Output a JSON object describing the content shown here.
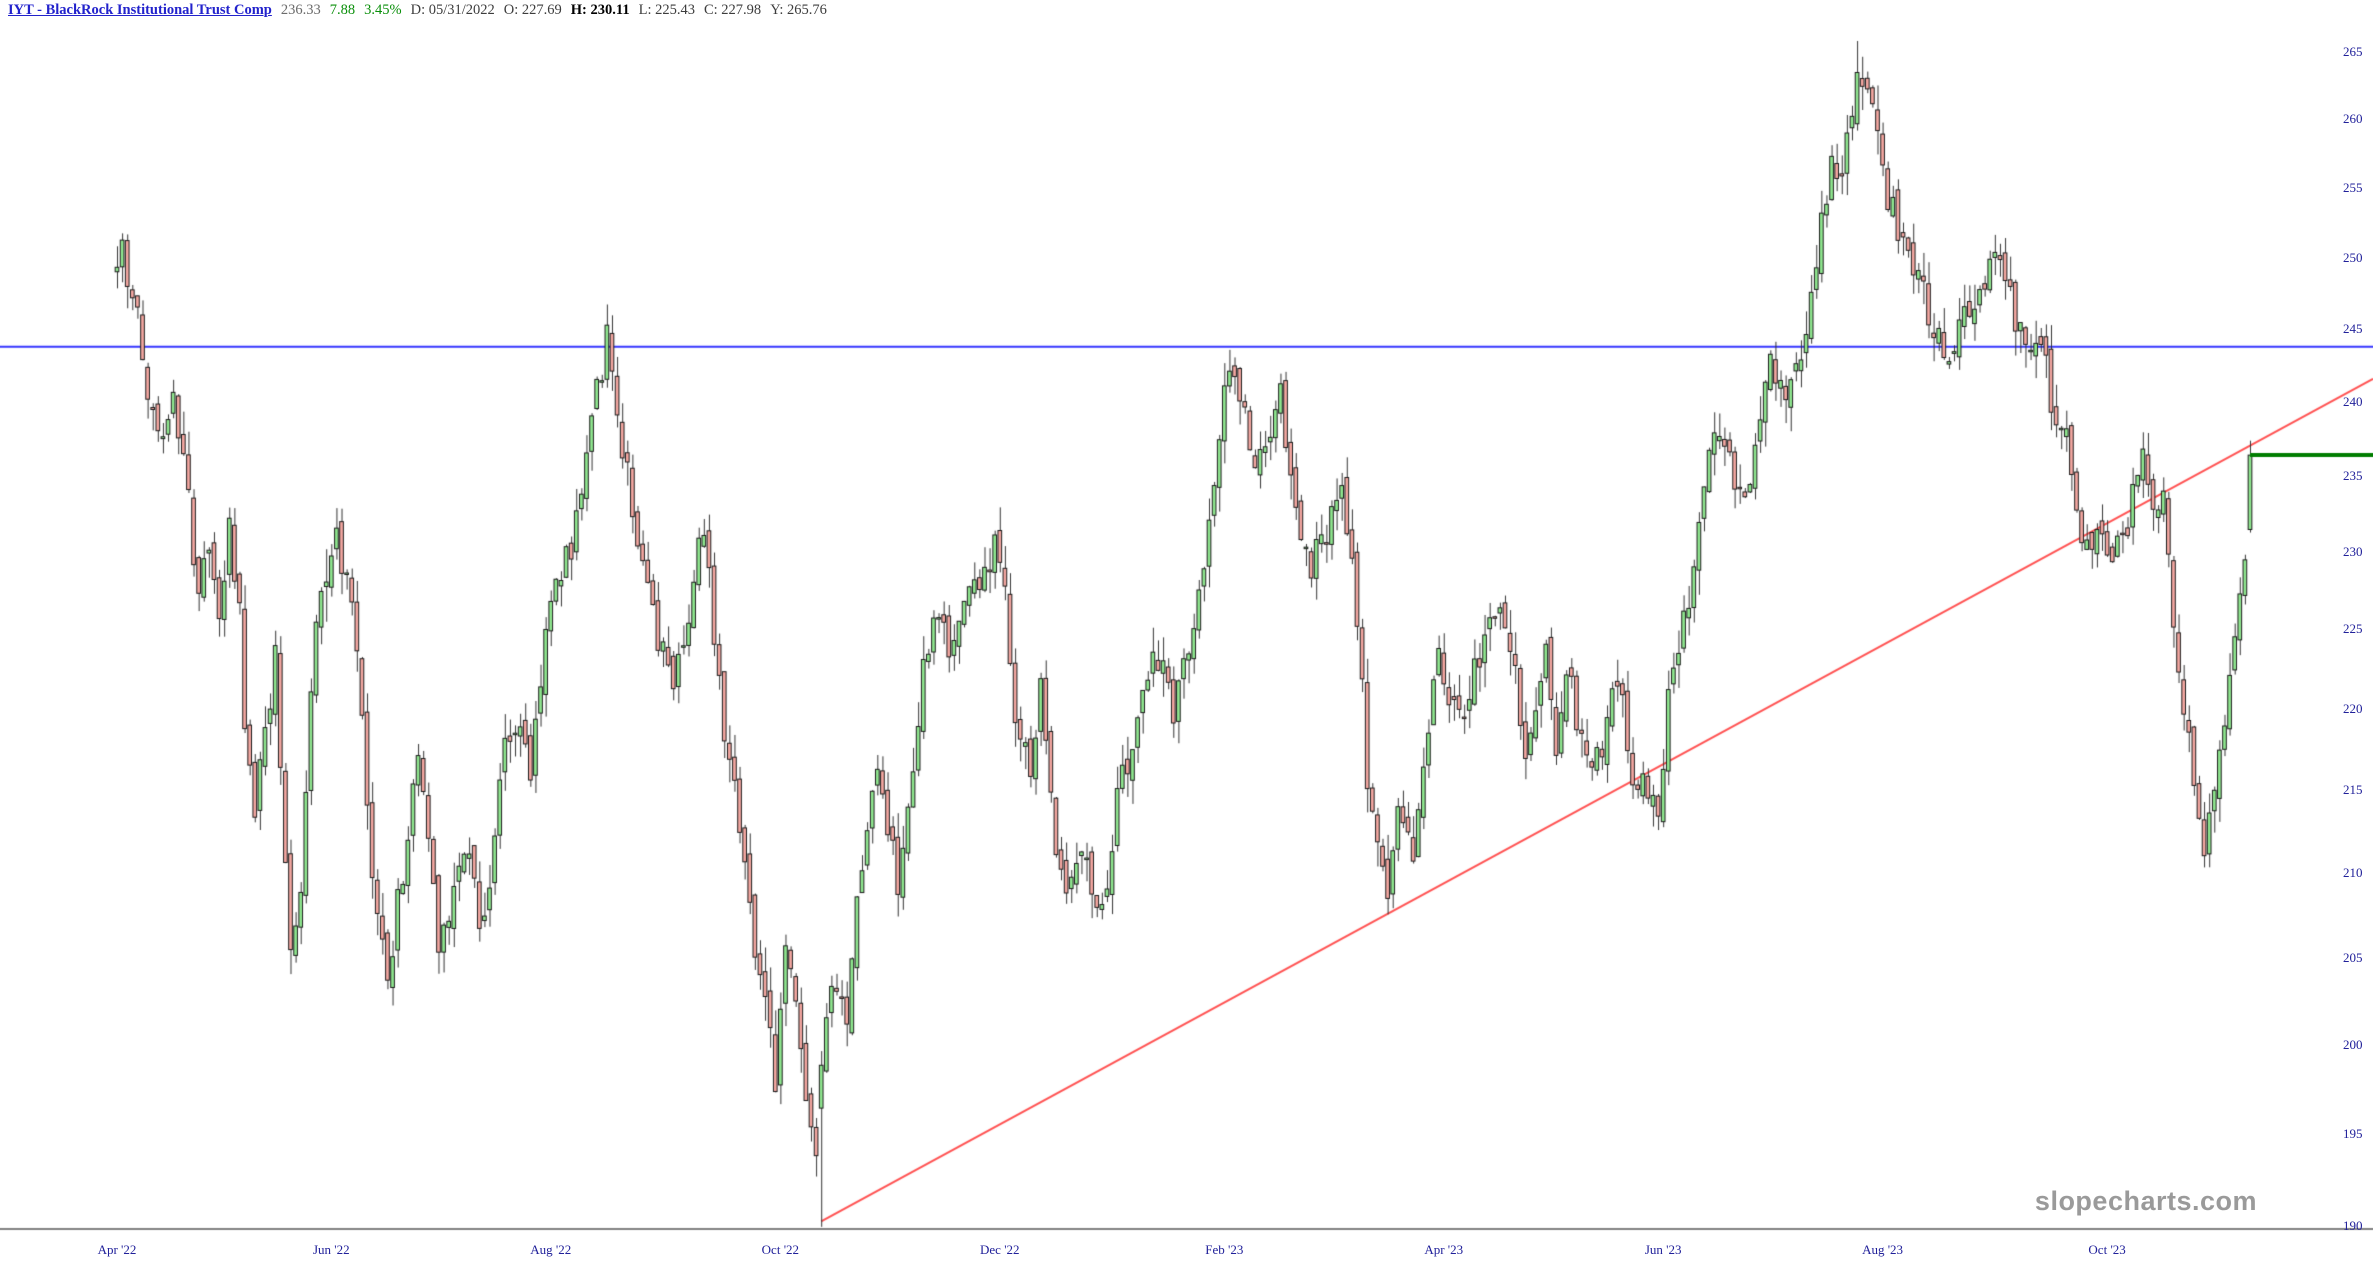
{
  "header": {
    "title": "IYT - BlackRock Institutional Trust Comp",
    "last_price": "236.33",
    "change": "7.88",
    "change_pct": "3.45%",
    "fields": [
      {
        "label": "D:",
        "value": "05/31/2022",
        "bold": false
      },
      {
        "label": "O:",
        "value": "227.69",
        "bold": false
      },
      {
        "label": "H:",
        "value": "230.11",
        "bold": true
      },
      {
        "label": "L:",
        "value": "225.43",
        "bold": false
      },
      {
        "label": "C:",
        "value": "227.98",
        "bold": false
      },
      {
        "label": "Y:",
        "value": "265.76",
        "bold": false
      }
    ]
  },
  "watermark": "slopecharts.com",
  "colors": {
    "candle_up_fill": "#90e890",
    "candle_down_fill": "#f5a8a2",
    "candle_border": "#1a1a1a",
    "wick": "#333333",
    "support_line_blue": "#3535ff",
    "trend_line_red": "#ff5252",
    "last_price_line_green": "#007d00",
    "axis_line_gray": "#808080",
    "axis_label_navy": "#20209a",
    "change_green": "#0a8f0a",
    "title_blue": "#2222cc",
    "watermark_gray": "#9a9a9a"
  },
  "chart_data": {
    "type": "candlestick",
    "symbol": "IYT",
    "scale": "log",
    "grid": "off",
    "y_axis": {
      "side": "right",
      "ticks": [
        265,
        260,
        255,
        250,
        245,
        240,
        235,
        230,
        225,
        220,
        215,
        210,
        205,
        200,
        195,
        190
      ]
    },
    "x_axis": {
      "labels": [
        "Apr '22",
        "Jun '22",
        "Aug '22",
        "Oct '22",
        "Dec '22",
        "Feb '23",
        "Apr '23",
        "Jun '23",
        "Aug '23",
        "Oct '23"
      ]
    },
    "date_range": {
      "start": "2022-04-04",
      "end": "2023-11-09"
    },
    "price_path_anchors": [
      [
        "2022-04-04",
        249
      ],
      [
        "2022-04-05",
        252
      ],
      [
        "2022-04-06",
        247
      ],
      [
        "2022-04-08",
        246
      ],
      [
        "2022-04-11",
        242
      ],
      [
        "2022-04-14",
        238
      ],
      [
        "2022-04-19",
        240
      ],
      [
        "2022-04-21",
        236
      ],
      [
        "2022-04-26",
        227
      ],
      [
        "2022-04-28",
        230
      ],
      [
        "2022-05-02",
        226
      ],
      [
        "2022-05-04",
        231
      ],
      [
        "2022-05-06",
        226
      ],
      [
        "2022-05-09",
        218
      ],
      [
        "2022-05-11",
        214
      ],
      [
        "2022-05-13",
        219
      ],
      [
        "2022-05-17",
        223
      ],
      [
        "2022-05-19",
        211
      ],
      [
        "2022-05-20",
        206
      ],
      [
        "2022-05-24",
        209
      ],
      [
        "2022-05-26",
        221
      ],
      [
        "2022-05-27",
        226
      ],
      [
        "2022-05-31",
        227.98
      ],
      [
        "2022-06-02",
        231
      ],
      [
        "2022-06-07",
        226
      ],
      [
        "2022-06-09",
        219
      ],
      [
        "2022-06-13",
        209
      ],
      [
        "2022-06-16",
        204
      ],
      [
        "2022-06-21",
        210
      ],
      [
        "2022-06-24",
        217
      ],
      [
        "2022-06-27",
        215
      ],
      [
        "2022-06-30",
        206
      ],
      [
        "2022-07-05",
        209
      ],
      [
        "2022-07-08",
        212
      ],
      [
        "2022-07-12",
        207
      ],
      [
        "2022-07-14",
        209
      ],
      [
        "2022-07-19",
        218
      ],
      [
        "2022-07-22",
        219
      ],
      [
        "2022-07-26",
        216
      ],
      [
        "2022-07-29",
        225
      ],
      [
        "2022-08-03",
        229
      ],
      [
        "2022-08-05",
        230
      ],
      [
        "2022-08-10",
        237
      ],
      [
        "2022-08-12",
        241
      ],
      [
        "2022-08-16",
        244
      ],
      [
        "2022-08-19",
        237
      ],
      [
        "2022-08-23",
        233
      ],
      [
        "2022-08-26",
        227
      ],
      [
        "2022-08-30",
        224
      ],
      [
        "2022-09-02",
        222
      ],
      [
        "2022-09-07",
        226
      ],
      [
        "2022-09-09",
        230
      ],
      [
        "2022-09-12",
        231
      ],
      [
        "2022-09-14",
        225
      ],
      [
        "2022-09-16",
        219
      ],
      [
        "2022-09-20",
        216
      ],
      [
        "2022-09-23",
        208
      ],
      [
        "2022-09-27",
        204
      ],
      [
        "2022-09-30",
        198
      ],
      [
        "2022-10-04",
        206
      ],
      [
        "2022-10-06",
        202
      ],
      [
        "2022-10-10",
        197
      ],
      [
        "2022-10-12",
        193
      ],
      [
        "2022-10-13",
        198
      ],
      [
        "2022-10-17",
        203
      ],
      [
        "2022-10-20",
        201
      ],
      [
        "2022-10-25",
        211
      ],
      [
        "2022-10-28",
        216
      ],
      [
        "2022-11-01",
        213
      ],
      [
        "2022-11-03",
        209
      ],
      [
        "2022-11-08",
        215
      ],
      [
        "2022-11-10",
        222
      ],
      [
        "2022-11-15",
        226
      ],
      [
        "2022-11-17",
        223
      ],
      [
        "2022-11-22",
        227
      ],
      [
        "2022-11-25",
        228
      ],
      [
        "2022-11-30",
        230
      ],
      [
        "2022-12-02",
        228
      ],
      [
        "2022-12-06",
        219
      ],
      [
        "2022-12-09",
        216
      ],
      [
        "2022-12-13",
        221
      ],
      [
        "2022-12-16",
        212
      ],
      [
        "2022-12-20",
        209
      ],
      [
        "2022-12-23",
        212
      ],
      [
        "2022-12-28",
        208
      ],
      [
        "2022-12-30",
        210
      ],
      [
        "2023-01-04",
        216
      ],
      [
        "2023-01-09",
        219
      ],
      [
        "2023-01-12",
        224
      ],
      [
        "2023-01-18",
        220
      ],
      [
        "2023-01-23",
        224
      ],
      [
        "2023-01-26",
        229
      ],
      [
        "2023-01-31",
        237
      ],
      [
        "2023-02-02",
        243
      ],
      [
        "2023-02-07",
        239
      ],
      [
        "2023-02-09",
        235
      ],
      [
        "2023-02-14",
        238
      ],
      [
        "2023-02-16",
        240
      ],
      [
        "2023-02-21",
        232
      ],
      [
        "2023-02-24",
        229
      ],
      [
        "2023-03-01",
        231
      ],
      [
        "2023-03-03",
        233
      ],
      [
        "2023-03-06",
        234
      ],
      [
        "2023-03-09",
        226
      ],
      [
        "2023-03-13",
        216
      ],
      [
        "2023-03-15",
        211
      ],
      [
        "2023-03-17",
        209
      ],
      [
        "2023-03-21",
        214
      ],
      [
        "2023-03-24",
        211
      ],
      [
        "2023-03-29",
        219
      ],
      [
        "2023-03-31",
        223
      ],
      [
        "2023-04-04",
        221
      ],
      [
        "2023-04-06",
        219
      ],
      [
        "2023-04-11",
        222
      ],
      [
        "2023-04-14",
        225
      ],
      [
        "2023-04-18",
        227
      ],
      [
        "2023-04-21",
        223
      ],
      [
        "2023-04-25",
        216
      ],
      [
        "2023-04-27",
        220
      ],
      [
        "2023-05-01",
        223
      ],
      [
        "2023-05-03",
        218
      ],
      [
        "2023-05-05",
        223
      ],
      [
        "2023-05-09",
        219
      ],
      [
        "2023-05-12",
        216
      ],
      [
        "2023-05-16",
        217
      ],
      [
        "2023-05-18",
        222
      ],
      [
        "2023-05-22",
        221
      ],
      [
        "2023-05-24",
        215
      ],
      [
        "2023-05-26",
        216
      ],
      [
        "2023-05-31",
        213
      ],
      [
        "2023-06-02",
        221
      ],
      [
        "2023-06-06",
        224
      ],
      [
        "2023-06-08",
        227
      ],
      [
        "2023-06-12",
        231
      ],
      [
        "2023-06-15",
        238
      ],
      [
        "2023-06-20",
        236
      ],
      [
        "2023-06-23",
        233
      ],
      [
        "2023-06-27",
        238
      ],
      [
        "2023-06-30",
        243
      ],
      [
        "2023-07-05",
        241
      ],
      [
        "2023-07-10",
        243
      ],
      [
        "2023-07-13",
        250
      ],
      [
        "2023-07-18",
        256
      ],
      [
        "2023-07-20",
        257
      ],
      [
        "2023-07-25",
        263
      ],
      [
        "2023-07-27",
        262
      ],
      [
        "2023-07-31",
        259
      ],
      [
        "2023-08-02",
        254
      ],
      [
        "2023-08-07",
        251
      ],
      [
        "2023-08-10",
        249
      ],
      [
        "2023-08-15",
        245
      ],
      [
        "2023-08-18",
        243
      ],
      [
        "2023-08-23",
        246
      ],
      [
        "2023-08-28",
        248
      ],
      [
        "2023-08-31",
        250
      ],
      [
        "2023-09-01",
        251
      ],
      [
        "2023-09-06",
        246
      ],
      [
        "2023-09-08",
        243
      ],
      [
        "2023-09-13",
        245
      ],
      [
        "2023-09-15",
        240
      ],
      [
        "2023-09-20",
        237
      ],
      [
        "2023-09-22",
        233
      ],
      [
        "2023-09-26",
        230
      ],
      [
        "2023-09-28",
        232
      ],
      [
        "2023-10-03",
        229
      ],
      [
        "2023-10-06",
        232
      ],
      [
        "2023-10-11",
        236
      ],
      [
        "2023-10-13",
        232
      ],
      [
        "2023-10-17",
        233
      ],
      [
        "2023-10-19",
        226
      ],
      [
        "2023-10-23",
        220
      ],
      [
        "2023-10-25",
        216
      ],
      [
        "2023-10-27",
        211
      ],
      [
        "2023-10-31",
        214
      ],
      [
        "2023-11-02",
        219
      ],
      [
        "2023-11-06",
        225
      ],
      [
        "2023-11-08",
        228.45
      ],
      [
        "2023-11-09",
        236.33
      ]
    ],
    "exact_candles": [
      {
        "date": "2022-05-31",
        "o": 227.69,
        "h": 230.11,
        "l": 225.43,
        "c": 227.98
      },
      {
        "date": "2022-10-13",
        "o": 196.4,
        "h": 199.6,
        "l": 189.9,
        "c": 198.8
      },
      {
        "date": "2023-07-25",
        "o": 259.6,
        "h": 265.76,
        "l": 259.1,
        "c": 263.4
      },
      {
        "date": "2023-11-09",
        "o": 231.4,
        "h": 237.3,
        "l": 231.2,
        "c": 236.33
      }
    ],
    "overlays": [
      {
        "kind": "horizontal_support_line",
        "price": 243.7
      },
      {
        "kind": "rising_trend_line",
        "from_date": "2022-10-13",
        "from_price": 190.2,
        "price_at_right_edge": 241.5
      },
      {
        "kind": "last_price_line",
        "from_date": "2023-11-09",
        "price": 236.33
      }
    ]
  }
}
